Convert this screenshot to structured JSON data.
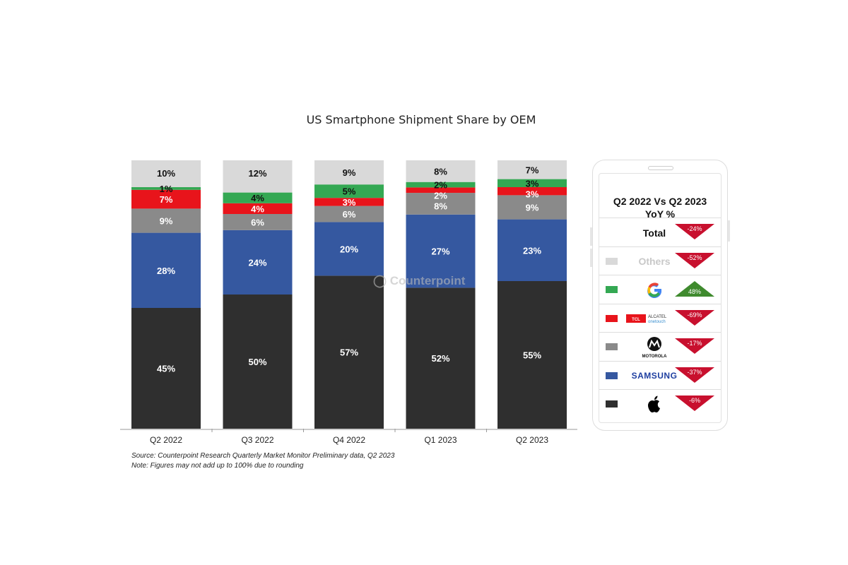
{
  "chart_data": {
    "type": "bar",
    "stacked": true,
    "title": "US Smartphone Shipment Share by OEM",
    "categories": [
      "Q2 2022",
      "Q3 2022",
      "Q4 2022",
      "Q1 2023",
      "Q2 2023"
    ],
    "series": [
      {
        "name": "Apple",
        "color": "#2f2f2f",
        "label_color": "#ffffff",
        "values": [
          45,
          50,
          57,
          52,
          55
        ]
      },
      {
        "name": "Samsung",
        "color": "#3558a0",
        "label_color": "#ffffff",
        "values": [
          28,
          24,
          20,
          27,
          23
        ]
      },
      {
        "name": "Motorola",
        "color": "#8a8a8a",
        "label_color": "#ffffff",
        "values": [
          9,
          6,
          6,
          8,
          9
        ]
      },
      {
        "name": "TCL Alcatel onetouch",
        "color": "#e8141b",
        "label_color": "#ffffff",
        "values": [
          7,
          4,
          3,
          2,
          3
        ]
      },
      {
        "name": "Google",
        "color": "#34a853",
        "label_color": "#111111",
        "values": [
          1,
          4,
          5,
          2,
          3
        ]
      },
      {
        "name": "Others",
        "color": "#d9d9d9",
        "label_color": "#111111",
        "values": [
          10,
          12,
          9,
          8,
          7
        ]
      }
    ],
    "value_suffix": "%",
    "ylim": [
      0,
      100
    ],
    "grid": false,
    "source": "Source: Counterpoint Research Quarterly Market Monitor Preliminary data, Q2 2023",
    "note": "Note: Figures may not add up to 100% due to rounding",
    "watermark": "Counterpoint"
  },
  "yoy_panel": {
    "title_line1": "Q2 2022 Vs Q2 2023",
    "title_line2": "YoY %",
    "rows": [
      {
        "label": "Total",
        "brand": "text",
        "value": "-24%",
        "direction": "down",
        "swatch": ""
      },
      {
        "label": "Others",
        "brand": "text",
        "value": "-52%",
        "direction": "down",
        "swatch": "#d9d9d9"
      },
      {
        "label": "Google",
        "brand": "google-logo",
        "value": "48%",
        "direction": "up",
        "swatch": "#34a853"
      },
      {
        "label": "TCL Alcatel onetouch",
        "brand": "tcl-alcatel-logo",
        "value": "-69%",
        "direction": "down",
        "swatch": "#e8141b"
      },
      {
        "label": "Motorola",
        "brand": "motorola-logo",
        "value": "-17%",
        "direction": "down",
        "swatch": "#8a8a8a"
      },
      {
        "label": "Samsung",
        "brand": "samsung-logo",
        "value": "-37%",
        "direction": "down",
        "swatch": "#3558a0"
      },
      {
        "label": "Apple",
        "brand": "apple-logo",
        "value": "-6%",
        "direction": "down",
        "swatch": "#2f2f2f"
      }
    ],
    "colors": {
      "down": "#c8102e",
      "up": "#3f8a2e"
    }
  }
}
